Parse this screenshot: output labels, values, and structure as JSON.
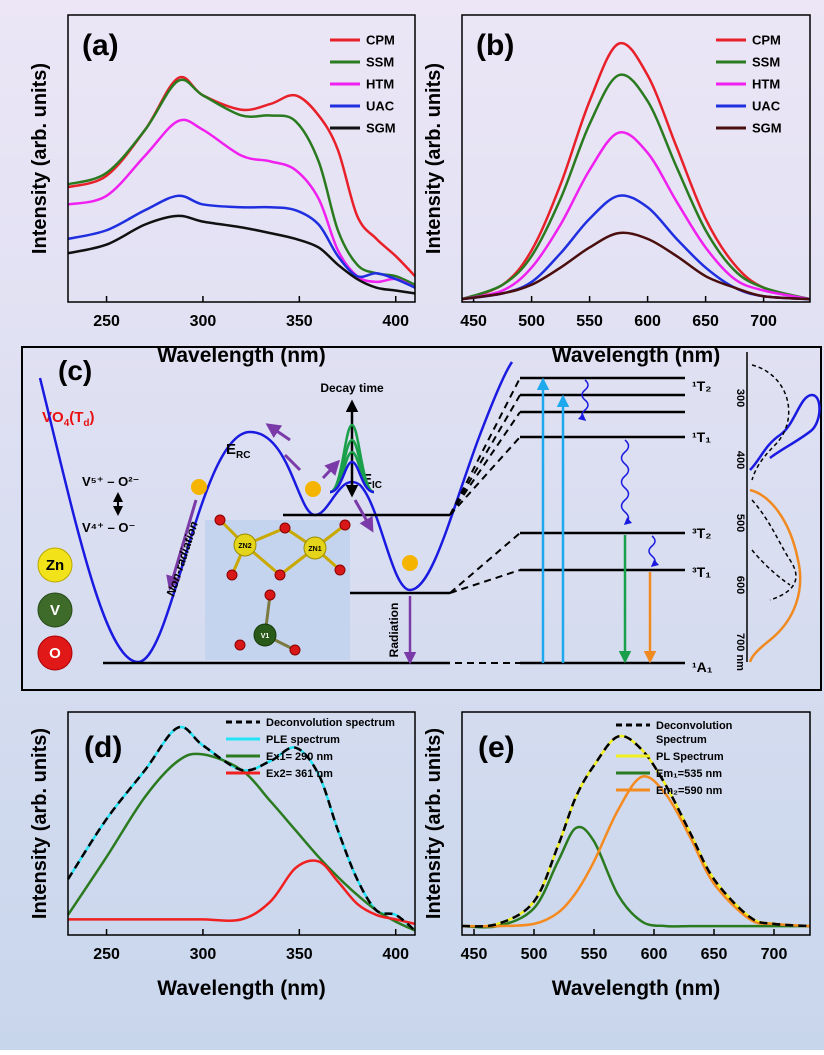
{
  "chart_data": [
    {
      "type": "line",
      "panel_label": "(a)",
      "xlabel": "Wavelength (nm)",
      "ylabel": "Intensity (arb. units)",
      "x": [
        230,
        250,
        270,
        287,
        300,
        320,
        335,
        348,
        360,
        370,
        380,
        390,
        400,
        410
      ],
      "xlim": [
        230,
        410
      ],
      "xticks": [
        250,
        300,
        350,
        400
      ],
      "ylim": [
        0,
        1
      ],
      "legend_loc": "upper right",
      "series": [
        {
          "name": "CPM",
          "color": "#e8202a",
          "values": [
            0.4,
            0.44,
            0.6,
            0.78,
            0.72,
            0.67,
            0.69,
            0.72,
            0.65,
            0.53,
            0.3,
            0.22,
            0.16,
            0.09
          ]
        },
        {
          "name": "SSM",
          "color": "#2a7a1f",
          "values": [
            0.41,
            0.45,
            0.6,
            0.77,
            0.72,
            0.65,
            0.65,
            0.63,
            0.49,
            0.25,
            0.13,
            0.1,
            0.09,
            0.06
          ]
        },
        {
          "name": "HTM",
          "color": "#f020f0",
          "values": [
            0.34,
            0.37,
            0.51,
            0.63,
            0.6,
            0.51,
            0.49,
            0.46,
            0.36,
            0.18,
            0.09,
            0.07,
            0.08,
            0.05
          ]
        },
        {
          "name": "UAC",
          "color": "#1f2fe0",
          "values": [
            0.22,
            0.25,
            0.32,
            0.37,
            0.34,
            0.33,
            0.33,
            0.32,
            0.27,
            0.16,
            0.09,
            0.1,
            0.08,
            0.05
          ]
        },
        {
          "name": "SGM",
          "color": "#111111",
          "values": [
            0.17,
            0.2,
            0.27,
            0.3,
            0.28,
            0.26,
            0.24,
            0.22,
            0.19,
            0.13,
            0.08,
            0.05,
            0.04,
            0.03
          ]
        }
      ]
    },
    {
      "type": "line",
      "panel_label": "(b)",
      "xlabel": "Wavelength (nm)",
      "ylabel": "Intensity (arb. units)",
      "x": [
        440,
        475,
        500,
        525,
        550,
        575,
        600,
        625,
        650,
        675,
        700,
        740
      ],
      "xlim": [
        440,
        740
      ],
      "xticks": [
        450,
        500,
        550,
        600,
        650,
        700
      ],
      "ylim": [
        0,
        1
      ],
      "legend_loc": "upper right",
      "series": [
        {
          "name": "CPM",
          "color": "#e8202a",
          "values": [
            0.01,
            0.06,
            0.18,
            0.41,
            0.7,
            0.9,
            0.79,
            0.54,
            0.29,
            0.13,
            0.05,
            0.01
          ]
        },
        {
          "name": "SSM",
          "color": "#2a7a1f",
          "values": [
            0.01,
            0.06,
            0.16,
            0.36,
            0.62,
            0.79,
            0.7,
            0.47,
            0.25,
            0.11,
            0.05,
            0.01
          ]
        },
        {
          "name": "HTM",
          "color": "#f020f0",
          "values": [
            0.01,
            0.04,
            0.12,
            0.27,
            0.46,
            0.59,
            0.52,
            0.35,
            0.19,
            0.08,
            0.04,
            0.01
          ]
        },
        {
          "name": "UAC",
          "color": "#1f2fe0",
          "values": [
            0.01,
            0.03,
            0.07,
            0.17,
            0.29,
            0.37,
            0.33,
            0.22,
            0.12,
            0.05,
            0.02,
            0.01
          ]
        },
        {
          "name": "SGM",
          "color": "#4a0e0e",
          "values": [
            0.01,
            0.03,
            0.06,
            0.12,
            0.19,
            0.24,
            0.22,
            0.16,
            0.09,
            0.05,
            0.02,
            0.01
          ]
        }
      ]
    },
    {
      "type": "line",
      "panel_label": "(d)",
      "xlabel": "Wavelength (nm)",
      "ylabel": "Intensity (arb. units)",
      "x": [
        230,
        250,
        270,
        287,
        300,
        320,
        335,
        348,
        360,
        370,
        380,
        390,
        400,
        410
      ],
      "xlim": [
        230,
        410
      ],
      "xticks": [
        250,
        300,
        350,
        400
      ],
      "ylim": [
        0,
        1
      ],
      "legend_loc": "upper right",
      "series": [
        {
          "name": "Deconvolution spectrum",
          "color": "#000000",
          "dashed": true,
          "values": [
            0.25,
            0.52,
            0.74,
            0.93,
            0.85,
            0.74,
            0.78,
            0.84,
            0.72,
            0.47,
            0.25,
            0.11,
            0.09,
            0.02
          ]
        },
        {
          "name": "PLE spectrum",
          "color": "#22e4f4",
          "values": [
            0.25,
            0.52,
            0.74,
            0.93,
            0.85,
            0.74,
            0.78,
            0.84,
            0.72,
            0.47,
            0.25,
            0.11,
            0.09,
            0.02
          ]
        },
        {
          "name": "Ex1= 290 nm",
          "color": "#2a7a1f",
          "values": [
            0.09,
            0.35,
            0.62,
            0.78,
            0.81,
            0.74,
            0.6,
            0.47,
            0.35,
            0.26,
            0.18,
            0.11,
            0.06,
            0.02
          ]
        },
        {
          "name": "Ex2= 361 nm",
          "color": "#f02020",
          "values": [
            0.07,
            0.07,
            0.07,
            0.07,
            0.07,
            0.07,
            0.15,
            0.3,
            0.33,
            0.24,
            0.14,
            0.09,
            0.07,
            0.05
          ]
        }
      ]
    },
    {
      "type": "line",
      "panel_label": "(e)",
      "xlabel": "Wavelength (nm)",
      "ylabel": "Intensity (arb. units)",
      "x": [
        440,
        470,
        500,
        520,
        535,
        550,
        570,
        590,
        610,
        630,
        650,
        680,
        700,
        730
      ],
      "xlim": [
        440,
        730
      ],
      "xticks": [
        450,
        500,
        550,
        600,
        650,
        700
      ],
      "ylim": [
        0,
        1
      ],
      "legend_loc": "upper right",
      "series": [
        {
          "name": "Deconvolution Spectrum",
          "color": "#000000",
          "dashed": true,
          "values": [
            0.04,
            0.05,
            0.15,
            0.4,
            0.62,
            0.76,
            0.89,
            0.83,
            0.67,
            0.46,
            0.25,
            0.08,
            0.05,
            0.04
          ]
        },
        {
          "name": "PL Spectrum",
          "color": "#f0f020",
          "values": [
            0.04,
            0.05,
            0.15,
            0.4,
            0.62,
            0.76,
            0.89,
            0.83,
            0.67,
            0.46,
            0.25,
            0.08,
            0.05,
            0.04
          ]
        },
        {
          "name": "Em₁=535 nm",
          "color": "#2a7a1f",
          "values": [
            0.04,
            0.04,
            0.12,
            0.33,
            0.48,
            0.42,
            0.18,
            0.06,
            0.04,
            0.04,
            0.04,
            0.04,
            0.04,
            0.04
          ]
        },
        {
          "name": "Em₂=590 nm",
          "color": "#f58a1f",
          "values": [
            0.04,
            0.04,
            0.05,
            0.1,
            0.19,
            0.33,
            0.56,
            0.71,
            0.63,
            0.44,
            0.23,
            0.07,
            0.05,
            0.04
          ]
        }
      ]
    }
  ],
  "diagram": {
    "panel_label": "(c)",
    "formula": [
      "VO",
      "4",
      "(T",
      "d",
      ")"
    ],
    "bond_top": "V⁵⁺ – O²⁻",
    "bond_bottom": "V⁴⁺ – O⁻",
    "elements": [
      "Zn",
      "V",
      "O"
    ],
    "non_radiation": "Non-radiation",
    "radiation": "Radiation",
    "decay_time": "Decay time",
    "e_rc": [
      "E",
      "RC"
    ],
    "e_ic": [
      "E",
      "IC"
    ],
    "atoms": [
      "ZN2",
      "ZN1",
      "V1"
    ],
    "states": [
      "¹T₂",
      "¹T₁",
      "³T₂",
      "³T₁",
      "¹A₁"
    ],
    "spectrum_ticks": [
      "300",
      "400",
      "500",
      "600",
      "700 nm"
    ]
  }
}
